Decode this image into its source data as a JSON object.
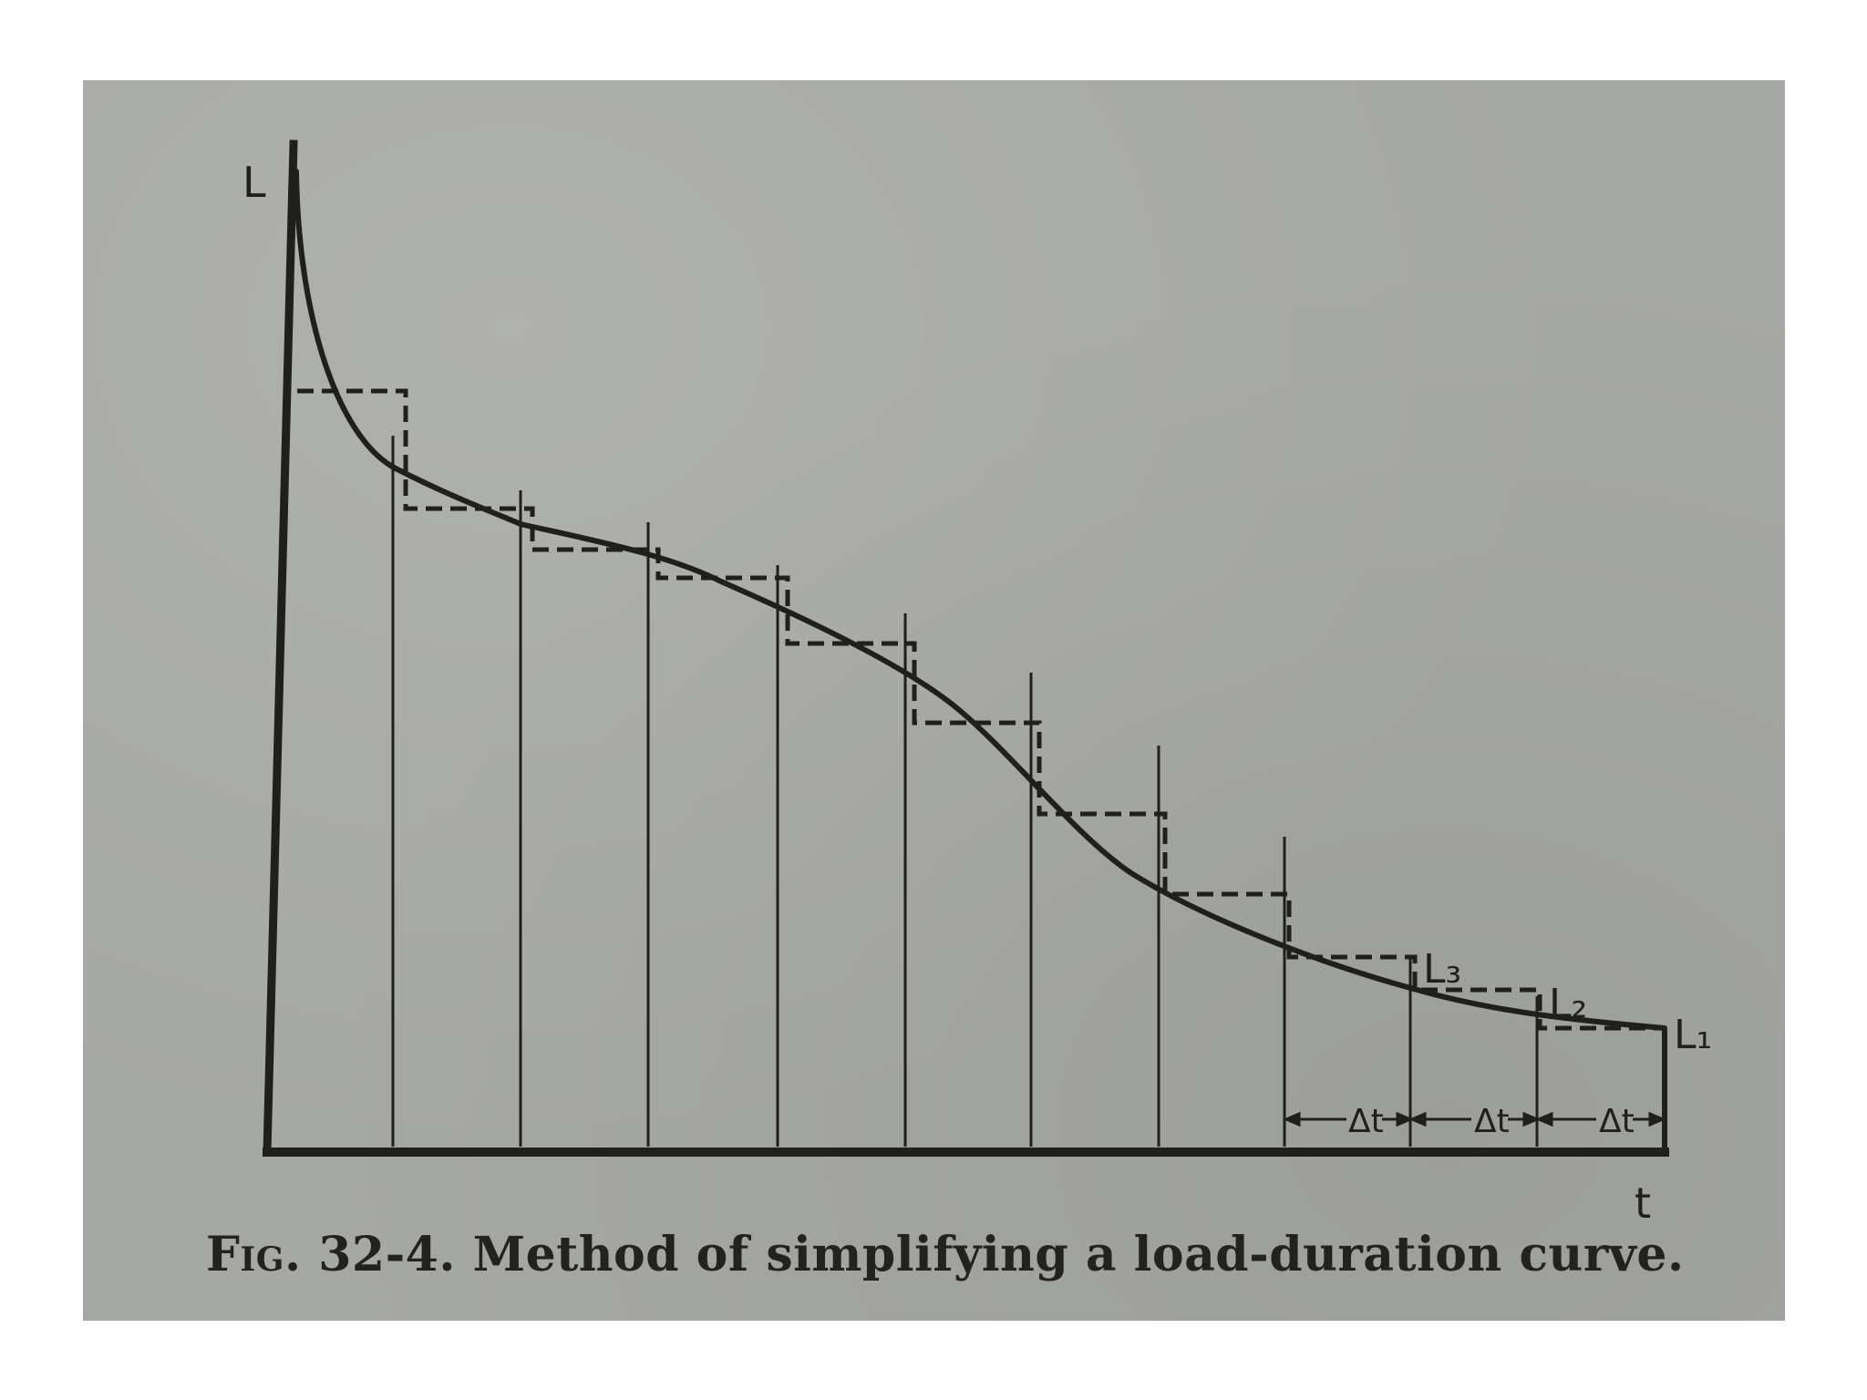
{
  "figure": {
    "caption_prefix": "Fig. 32-4.",
    "caption_text": "Method of simplifying a load-duration curve."
  },
  "axes": {
    "y_label": "L",
    "x_label": "t"
  },
  "labels": {
    "l3": "L₃",
    "l2": "L₂",
    "l1": "L₁",
    "delta_t": "Δt"
  },
  "colors": {
    "ink": "#1f201e",
    "paper": "#a6a8a3"
  }
}
